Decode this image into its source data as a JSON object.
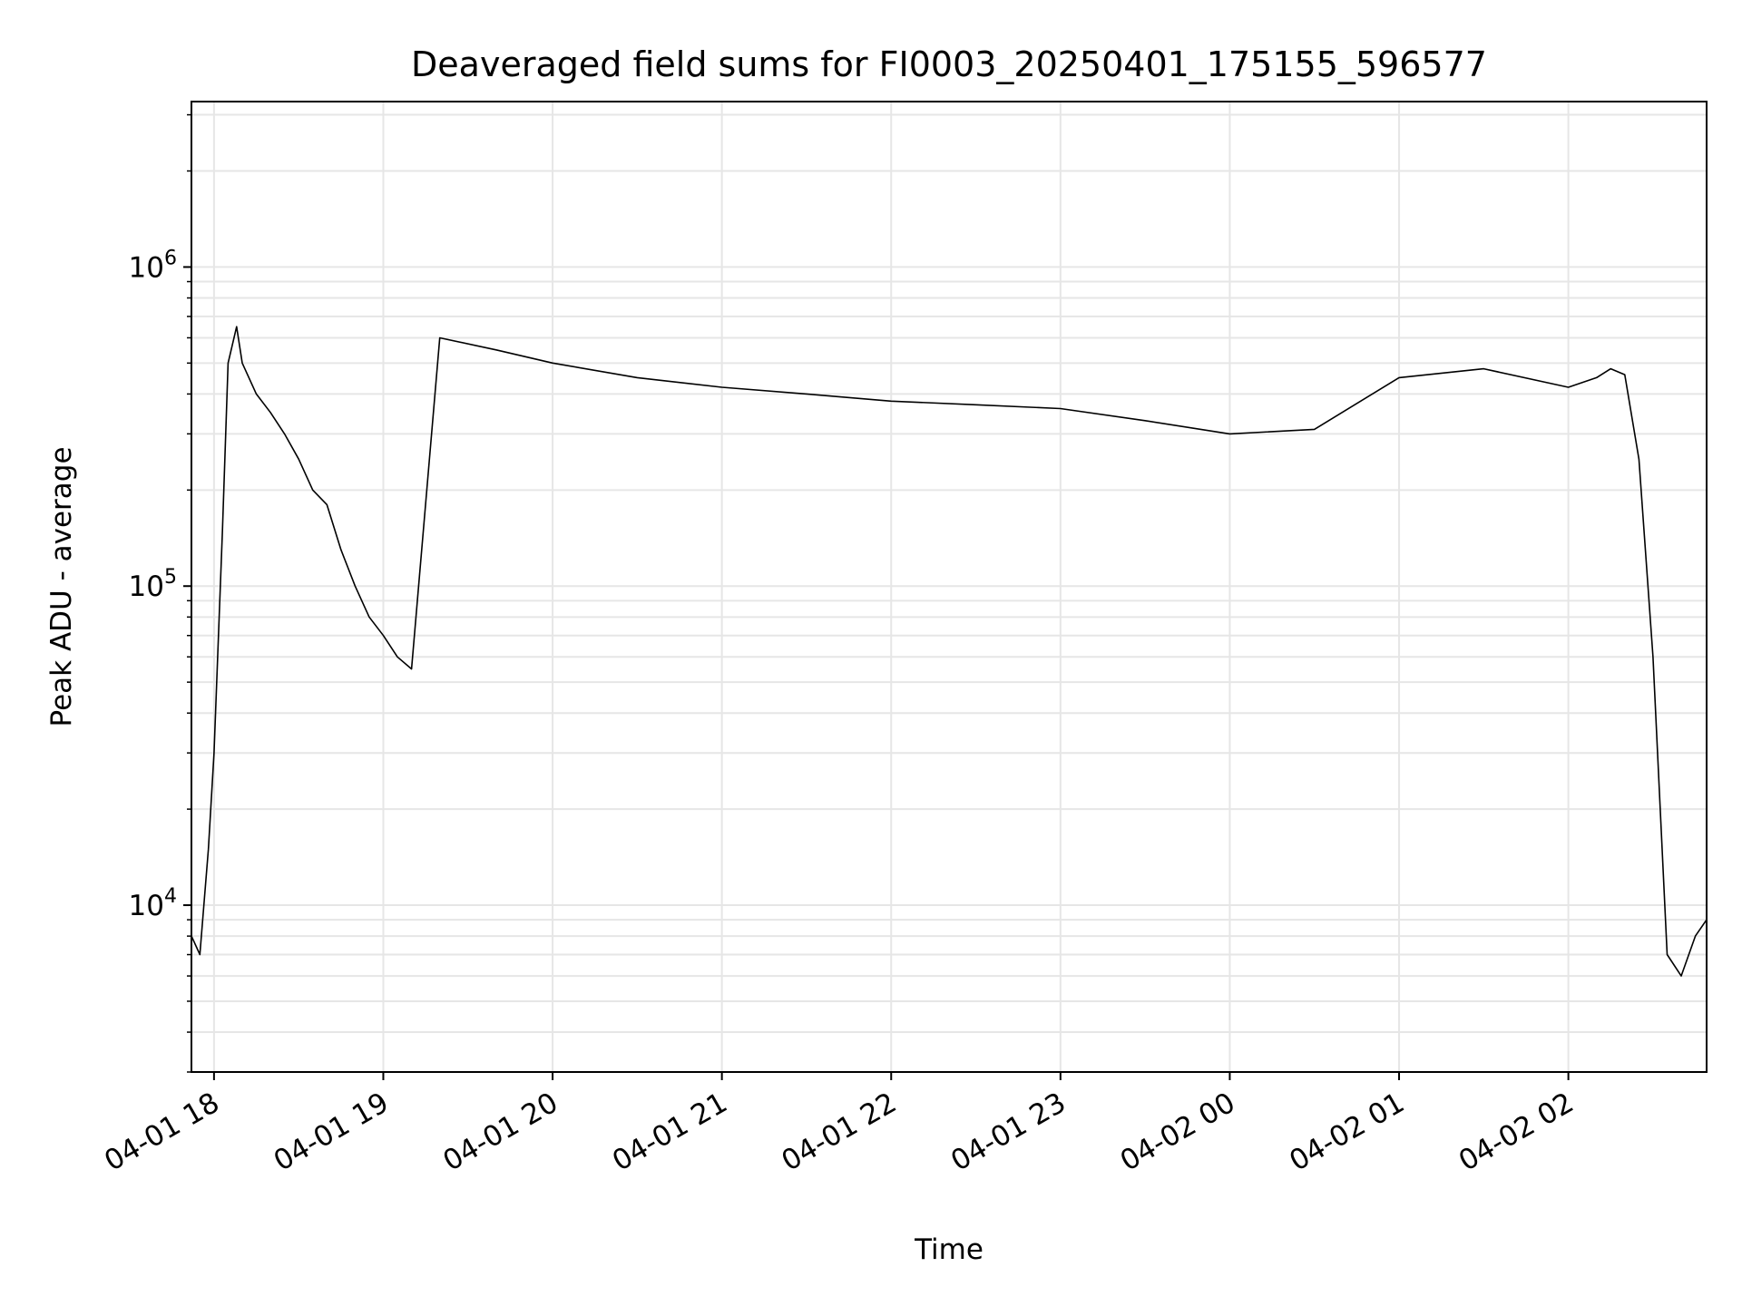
{
  "chart_data": {
    "type": "line",
    "title": "Deaveraged field sums for FI0003_20250401_175155_596577",
    "xlabel": "Time",
    "ylabel": "Peak ADU - average",
    "y_scale": "log",
    "ylim": [
      3000,
      3300000
    ],
    "xlim": [
      "2025-04-01 17:52",
      "2025-04-02 02:49"
    ],
    "grid": true,
    "line_color": "#000000",
    "x_ticks": [
      {
        "value": "2025-04-01 18:00",
        "label": "04-01 18"
      },
      {
        "value": "2025-04-01 19:00",
        "label": "04-01 19"
      },
      {
        "value": "2025-04-01 20:00",
        "label": "04-01 20"
      },
      {
        "value": "2025-04-01 21:00",
        "label": "04-01 21"
      },
      {
        "value": "2025-04-01 22:00",
        "label": "04-01 22"
      },
      {
        "value": "2025-04-01 23:00",
        "label": "04-01 23"
      },
      {
        "value": "2025-04-02 00:00",
        "label": "04-02 00"
      },
      {
        "value": "2025-04-02 01:00",
        "label": "04-02 01"
      },
      {
        "value": "2025-04-02 02:00",
        "label": "04-02 02"
      }
    ],
    "y_ticks": [
      {
        "value": 10000,
        "base": "10",
        "exp": "4"
      },
      {
        "value": 100000,
        "base": "10",
        "exp": "5"
      },
      {
        "value": 1000000,
        "base": "10",
        "exp": "6"
      }
    ],
    "series": [
      {
        "x": [
          "2025-04-01 17:52",
          "2025-04-01 17:55",
          "2025-04-01 17:58",
          "2025-04-01 18:00",
          "2025-04-01 18:03",
          "2025-04-01 18:05",
          "2025-04-01 18:08",
          "2025-04-01 18:10",
          "2025-04-01 18:15",
          "2025-04-01 18:20",
          "2025-04-01 18:25",
          "2025-04-01 18:30",
          "2025-04-01 18:35",
          "2025-04-01 18:40",
          "2025-04-01 18:45",
          "2025-04-01 18:50",
          "2025-04-01 18:55",
          "2025-04-01 19:00",
          "2025-04-01 19:05",
          "2025-04-01 19:10",
          "2025-04-01 19:20",
          "2025-04-01 19:40",
          "2025-04-01 20:00",
          "2025-04-01 20:30",
          "2025-04-01 21:00",
          "2025-04-01 21:30",
          "2025-04-01 22:00",
          "2025-04-01 22:30",
          "2025-04-01 23:00",
          "2025-04-01 23:30",
          "2025-04-02 00:00",
          "2025-04-02 00:30",
          "2025-04-02 01:00",
          "2025-04-02 01:30",
          "2025-04-02 02:00",
          "2025-04-02 02:10",
          "2025-04-02 02:15",
          "2025-04-02 02:20",
          "2025-04-02 02:25",
          "2025-04-02 02:30",
          "2025-04-02 02:35",
          "2025-04-02 02:40",
          "2025-04-02 02:45",
          "2025-04-02 02:49"
        ],
        "y": [
          8000,
          7000,
          15000,
          30000,
          150000,
          500000,
          650000,
          500000,
          400000,
          350000,
          300000,
          250000,
          200000,
          180000,
          130000,
          100000,
          80000,
          70000,
          60000,
          55000,
          600000,
          550000,
          500000,
          450000,
          420000,
          400000,
          380000,
          370000,
          360000,
          330000,
          300000,
          310000,
          450000,
          480000,
          420000,
          450000,
          480000,
          460000,
          250000,
          60000,
          7000,
          6000,
          8000,
          9000
        ]
      }
    ]
  }
}
